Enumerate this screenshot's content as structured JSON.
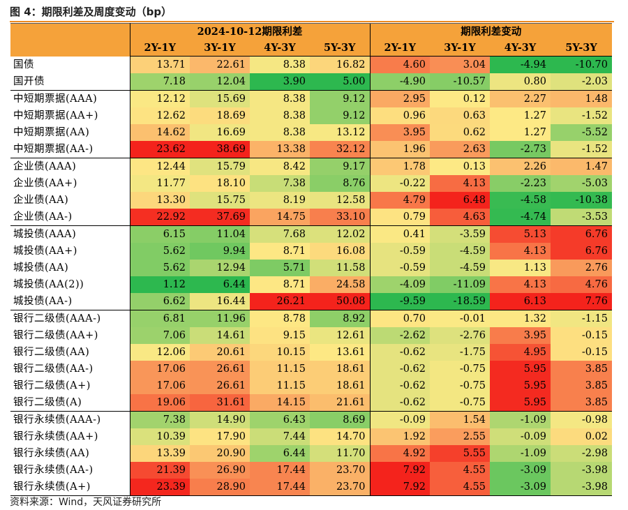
{
  "figure_title": "图 4：期限利差及周度变动（bp）",
  "header": {
    "group_levels": "2024-10-12期限利差",
    "group_changes": "期限利差变动",
    "columns": [
      "2Y-1Y",
      "3Y-1Y",
      "4Y-3Y",
      "5Y-3Y",
      "2Y-1Y",
      "3Y-1Y",
      "4Y-3Y",
      "5Y-3Y"
    ]
  },
  "colors": {
    "header_bg": "#f5a23a",
    "title_rule": "#f08a1c",
    "scale_low": "#2db84f",
    "scale_mid": "#fde985",
    "scale_high": "#f4231c"
  },
  "rows": [
    {
      "name": "国债",
      "levels": [
        "13.71",
        "22.61",
        "8.38",
        "16.82"
      ],
      "changes": [
        "4.60",
        "3.04",
        "-4.94",
        "-10.70"
      ]
    },
    {
      "name": "国开债",
      "levels": [
        "7.18",
        "12.04",
        "3.90",
        "5.00"
      ],
      "changes": [
        "-4.90",
        "-10.57",
        "0.80",
        "-2.03"
      ]
    },
    {
      "name": "中短期票据(AAA)",
      "levels": [
        "12.12",
        "15.69",
        "8.38",
        "9.12"
      ],
      "changes": [
        "2.95",
        "0.12",
        "2.27",
        "1.48"
      ]
    },
    {
      "name": "中短期票据(AA+)",
      "levels": [
        "12.62",
        "18.69",
        "8.38",
        "9.12"
      ],
      "changes": [
        "0.96",
        "0.63",
        "1.27",
        "-1.52"
      ]
    },
    {
      "name": "中短期票据(AA)",
      "levels": [
        "14.62",
        "16.69",
        "8.38",
        "13.12"
      ],
      "changes": [
        "3.95",
        "0.62",
        "1.27",
        "-5.52"
      ]
    },
    {
      "name": "中短期票据(AA-)",
      "levels": [
        "23.62",
        "38.69",
        "13.38",
        "32.12"
      ],
      "changes": [
        "1.96",
        "2.63",
        "-2.73",
        "-1.52"
      ]
    },
    {
      "name": "企业债(AAA)",
      "levels": [
        "12.44",
        "15.79",
        "8.42",
        "9.17"
      ],
      "changes": [
        "1.78",
        "0.13",
        "2.26",
        "1.47"
      ]
    },
    {
      "name": "企业债(AA+)",
      "levels": [
        "11.77",
        "18.10",
        "7.38",
        "8.76"
      ],
      "changes": [
        "-0.22",
        "4.13",
        "-2.23",
        "-5.03"
      ]
    },
    {
      "name": "企业债(AA)",
      "levels": [
        "13.30",
        "15.75",
        "8.19",
        "12.58"
      ],
      "changes": [
        "4.79",
        "6.48",
        "-4.58",
        "-10.38"
      ]
    },
    {
      "name": "企业债(AA-)",
      "levels": [
        "22.92",
        "37.69",
        "14.75",
        "33.10"
      ],
      "changes": [
        "0.79",
        "4.63",
        "-4.74",
        "-3.53"
      ]
    },
    {
      "name": "城投债(AAA)",
      "levels": [
        "6.15",
        "11.04",
        "7.68",
        "12.02"
      ],
      "changes": [
        "0.41",
        "-3.59",
        "5.13",
        "6.76"
      ]
    },
    {
      "name": "城投债(AA+)",
      "levels": [
        "5.62",
        "9.94",
        "8.71",
        "16.08"
      ],
      "changes": [
        "-0.59",
        "-4.59",
        "4.13",
        "6.76"
      ]
    },
    {
      "name": "城投债(AA)",
      "levels": [
        "5.62",
        "12.94",
        "5.71",
        "11.58"
      ],
      "changes": [
        "-0.59",
        "-4.59",
        "1.13",
        "2.76"
      ]
    },
    {
      "name": "城投债(AA(2))",
      "levels": [
        "1.12",
        "6.44",
        "8.71",
        "24.58"
      ],
      "changes": [
        "-4.09",
        "-11.09",
        "4.13",
        "4.76"
      ]
    },
    {
      "name": "城投债(AA-)",
      "levels": [
        "6.62",
        "16.44",
        "26.21",
        "50.08"
      ],
      "changes": [
        "-9.59",
        "-18.59",
        "6.13",
        "7.76"
      ]
    },
    {
      "name": "银行二级债(AAA-)",
      "levels": [
        "6.81",
        "11.96",
        "8.78",
        "8.92"
      ],
      "changes": [
        "0.70",
        "-0.01",
        "1.32",
        "-1.15"
      ]
    },
    {
      "name": "银行二级债(AA+)",
      "levels": [
        "7.06",
        "14.61",
        "9.15",
        "12.61"
      ],
      "changes": [
        "-2.62",
        "-2.76",
        "3.95",
        "-0.15"
      ]
    },
    {
      "name": "银行二级债(AA)",
      "levels": [
        "12.06",
        "20.61",
        "10.15",
        "13.61"
      ],
      "changes": [
        "-0.62",
        "-1.75",
        "4.95",
        "-0.15"
      ]
    },
    {
      "name": "银行二级债(AA-)",
      "levels": [
        "17.06",
        "26.61",
        "11.15",
        "18.61"
      ],
      "changes": [
        "-0.62",
        "-0.75",
        "5.95",
        "3.85"
      ]
    },
    {
      "name": "银行二级债(A+)",
      "levels": [
        "17.06",
        "26.61",
        "11.15",
        "18.61"
      ],
      "changes": [
        "-0.62",
        "-0.75",
        "5.95",
        "3.85"
      ]
    },
    {
      "name": "银行二级债(A)",
      "levels": [
        "19.06",
        "31.61",
        "14.15",
        "21.61"
      ],
      "changes": [
        "-0.62",
        "-0.75",
        "5.95",
        "3.85"
      ]
    },
    {
      "name": "银行永续债(AAA-)",
      "levels": [
        "7.38",
        "14.90",
        "6.43",
        "8.69"
      ],
      "changes": [
        "-0.09",
        "1.54",
        "-1.09",
        "-0.98"
      ]
    },
    {
      "name": "银行永续债(AA+)",
      "levels": [
        "10.39",
        "17.90",
        "7.44",
        "14.70"
      ],
      "changes": [
        "1.92",
        "2.55",
        "-0.09",
        "0.02"
      ]
    },
    {
      "name": "银行永续债(AA)",
      "levels": [
        "13.39",
        "20.90",
        "6.44",
        "11.70"
      ],
      "changes": [
        "4.92",
        "5.55",
        "-1.09",
        "-2.98"
      ]
    },
    {
      "name": "银行永续债(AA-)",
      "levels": [
        "21.39",
        "26.90",
        "17.44",
        "23.70"
      ],
      "changes": [
        "7.92",
        "4.55",
        "-3.09",
        "-3.98"
      ]
    },
    {
      "name": "银行永续债(A+)",
      "levels": [
        "23.39",
        "28.90",
        "17.44",
        "23.70"
      ],
      "changes": [
        "7.92",
        "4.55",
        "-3.09",
        "-3.98"
      ]
    }
  ],
  "source_note": "资料来源：Wind，天风证券研究所"
}
